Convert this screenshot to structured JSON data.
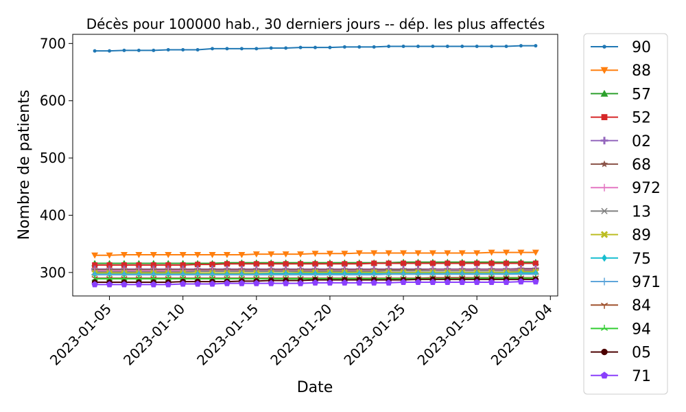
{
  "chart_data": {
    "type": "line",
    "title": "Décès pour 100000 hab., 30 derniers jours -- dép. les plus affectés",
    "xlabel": "Date",
    "ylabel": "Nombre de patients",
    "x_start": "2023-01-04",
    "x": [
      "2023-01-04",
      "2023-01-05",
      "2023-01-06",
      "2023-01-07",
      "2023-01-08",
      "2023-01-09",
      "2023-01-10",
      "2023-01-11",
      "2023-01-12",
      "2023-01-13",
      "2023-01-14",
      "2023-01-15",
      "2023-01-16",
      "2023-01-17",
      "2023-01-18",
      "2023-01-19",
      "2023-01-20",
      "2023-01-21",
      "2023-01-22",
      "2023-01-23",
      "2023-01-24",
      "2023-01-25",
      "2023-01-26",
      "2023-01-27",
      "2023-01-28",
      "2023-01-29",
      "2023-01-30",
      "2023-01-31",
      "2023-02-01",
      "2023-02-02",
      "2023-02-03"
    ],
    "xlim": [
      "2023-01-02T12:00",
      "2023-02-04T12:00"
    ],
    "ylim": [
      259,
      716
    ],
    "x_ticks": [
      "2023-01-05",
      "2023-01-10",
      "2023-01-15",
      "2023-01-20",
      "2023-01-25",
      "2023-01-30",
      "2023-02-04"
    ],
    "y_ticks": [
      300,
      400,
      500,
      600,
      700
    ],
    "grid": false,
    "legend_placement": "outside-right",
    "series": [
      {
        "name": "90",
        "color": "#1f77b4",
        "marker": "point",
        "values": [
          687,
          687,
          688,
          688,
          688,
          689,
          689,
          689,
          691,
          691,
          691,
          691,
          692,
          692,
          693,
          693,
          693,
          694,
          694,
          694,
          695,
          695,
          695,
          695,
          695,
          695,
          695,
          695,
          695,
          696,
          696
        ]
      },
      {
        "name": "88",
        "color": "#ff7f0e",
        "marker": "triangle-down",
        "values": [
          330,
          330,
          331,
          331,
          331,
          331,
          331,
          331,
          331,
          331,
          331,
          332,
          332,
          332,
          332,
          333,
          333,
          333,
          334,
          334,
          334,
          334,
          334,
          334,
          334,
          334,
          334,
          335,
          335,
          335,
          335
        ]
      },
      {
        "name": "57",
        "color": "#2ca02c",
        "marker": "triangle-up",
        "values": [
          316,
          316,
          316,
          316,
          316,
          316,
          316,
          316,
          316,
          317,
          317,
          317,
          317,
          317,
          317,
          317,
          317,
          317,
          317,
          317,
          317,
          318,
          318,
          318,
          318,
          318,
          318,
          318,
          318,
          318,
          318
        ]
      },
      {
        "name": "52",
        "color": "#d62728",
        "marker": "square",
        "values": [
          313,
          313,
          313,
          313,
          313,
          313,
          313,
          314,
          314,
          315,
          315,
          315,
          315,
          315,
          315,
          315,
          315,
          315,
          315,
          316,
          316,
          316,
          316,
          316,
          316,
          316,
          316,
          316,
          316,
          316,
          316
        ]
      },
      {
        "name": "02",
        "color": "#9467bd",
        "marker": "plus-filled",
        "values": [
          306,
          306,
          306,
          306,
          306,
          306,
          306,
          306,
          306,
          306,
          306,
          306,
          306,
          306,
          306,
          306,
          306,
          306,
          306,
          306,
          306,
          306,
          306,
          306,
          306,
          306,
          306,
          306,
          306,
          307,
          307
        ]
      },
      {
        "name": "68",
        "color": "#8c564b",
        "marker": "star",
        "values": [
          305,
          305,
          305,
          305,
          305,
          305,
          305,
          305,
          305,
          305,
          305,
          305,
          305,
          305,
          305,
          305,
          305,
          305,
          305,
          305,
          305,
          305,
          305,
          305,
          305,
          305,
          305,
          305,
          305,
          306,
          306
        ]
      },
      {
        "name": "972",
        "color": "#e377c2",
        "marker": "plus",
        "values": [
          303,
          303,
          303,
          303,
          303,
          303,
          303,
          303,
          303,
          303,
          303,
          303,
          303,
          303,
          303,
          303,
          303,
          303,
          303,
          303,
          303,
          303,
          303,
          304,
          304,
          304,
          304,
          304,
          304,
          304,
          304
        ]
      },
      {
        "name": "13",
        "color": "#7f7f7f",
        "marker": "x",
        "values": [
          301,
          301,
          301,
          301,
          301,
          301,
          301,
          302,
          302,
          302,
          302,
          302,
          302,
          302,
          302,
          302,
          302,
          302,
          302,
          302,
          303,
          303,
          303,
          303,
          303,
          303,
          303,
          303,
          303,
          303,
          303
        ]
      },
      {
        "name": "89",
        "color": "#bcbd22",
        "marker": "x-filled",
        "values": [
          299,
          299,
          299,
          299,
          299,
          299,
          299,
          299,
          299,
          299,
          299,
          299,
          299,
          299,
          300,
          300,
          300,
          300,
          300,
          300,
          300,
          300,
          300,
          300,
          300,
          300,
          300,
          300,
          300,
          301,
          301
        ]
      },
      {
        "name": "75",
        "color": "#17becf",
        "marker": "diamond",
        "values": [
          297,
          297,
          297,
          297,
          297,
          297,
          297,
          297,
          297,
          297,
          297,
          297,
          298,
          298,
          298,
          298,
          298,
          298,
          298,
          298,
          298,
          298,
          298,
          298,
          298,
          298,
          298,
          298,
          298,
          299,
          299
        ]
      },
      {
        "name": "971",
        "color": "#5da5da",
        "marker": "plus",
        "values": [
          296,
          296,
          296,
          296,
          296,
          296,
          296,
          296,
          296,
          296,
          296,
          296,
          296,
          296,
          296,
          296,
          296,
          296,
          296,
          296,
          297,
          297,
          297,
          297,
          297,
          297,
          297,
          297,
          297,
          297,
          297
        ]
      },
      {
        "name": "84",
        "color": "#a0522d",
        "marker": "tri-down",
        "values": [
          290,
          290,
          290,
          290,
          290,
          290,
          290,
          290,
          290,
          290,
          290,
          290,
          290,
          290,
          290,
          290,
          290,
          290,
          290,
          290,
          290,
          290,
          290,
          291,
          291,
          291,
          291,
          291,
          291,
          291,
          291
        ]
      },
      {
        "name": "94",
        "color": "#32cd32",
        "marker": "tri-up",
        "values": [
          289,
          289,
          289,
          289,
          289,
          289,
          289,
          289,
          289,
          289,
          289,
          289,
          289,
          289,
          289,
          289,
          289,
          289,
          289,
          289,
          289,
          289,
          289,
          289,
          289,
          289,
          290,
          290,
          290,
          290,
          290
        ]
      },
      {
        "name": "05",
        "color": "#4b0000",
        "marker": "circle",
        "values": [
          283,
          283,
          283,
          283,
          283,
          283,
          284,
          284,
          284,
          284,
          285,
          285,
          286,
          286,
          286,
          287,
          287,
          287,
          287,
          287,
          287,
          287,
          288,
          288,
          288,
          288,
          288,
          288,
          288,
          288,
          288
        ]
      },
      {
        "name": "71",
        "color": "#8a3ffc",
        "marker": "pentagon",
        "values": [
          279,
          279,
          279,
          279,
          279,
          279,
          280,
          280,
          280,
          281,
          281,
          281,
          281,
          281,
          281,
          282,
          282,
          282,
          282,
          282,
          282,
          283,
          283,
          283,
          283,
          283,
          283,
          283,
          283,
          284,
          284
        ]
      }
    ]
  }
}
